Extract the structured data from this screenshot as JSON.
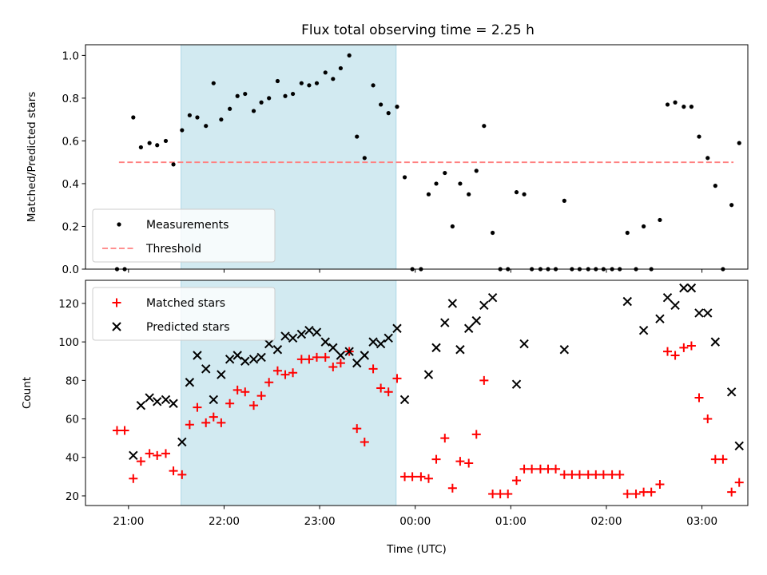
{
  "title": "Flux total observing time = 2.25 h",
  "colors": {
    "shade": "#add8e6",
    "measurement": "#000000",
    "threshold": "#ff8080",
    "matched": "#ff0000",
    "predicted": "#000000"
  },
  "x_ticks": [
    "21:00",
    "22:00",
    "23:00",
    "00:00",
    "01:00",
    "02:00",
    "03:00"
  ],
  "chart_data": [
    {
      "type": "scatter",
      "xlabel": "",
      "ylabel": "Matched/Predicted stars",
      "xlim": [
        20.55,
        27.48
      ],
      "ylim": [
        0,
        1.05
      ],
      "yticks": [
        "0.0",
        "0.2",
        "0.4",
        "0.6",
        "0.8",
        "1.0"
      ],
      "shaded_interval": [
        21.55,
        23.8
      ],
      "legend": {
        "placement": "lower-left",
        "entries": [
          "Measurements",
          "Threshold"
        ]
      },
      "threshold": {
        "name": "Threshold",
        "y": 0.5,
        "x_range": [
          20.9,
          27.33
        ]
      },
      "series": [
        {
          "name": "Measurements",
          "marker": "point",
          "points": [
            [
              20.88,
              0.0
            ],
            [
              20.96,
              0.0
            ],
            [
              21.05,
              0.71
            ],
            [
              21.13,
              0.57
            ],
            [
              21.22,
              0.59
            ],
            [
              21.3,
              0.58
            ],
            [
              21.39,
              0.6
            ],
            [
              21.47,
              0.49
            ],
            [
              21.56,
              0.65
            ],
            [
              21.64,
              0.72
            ],
            [
              21.72,
              0.71
            ],
            [
              21.81,
              0.67
            ],
            [
              21.89,
              0.87
            ],
            [
              21.97,
              0.7
            ],
            [
              22.06,
              0.75
            ],
            [
              22.14,
              0.81
            ],
            [
              22.22,
              0.82
            ],
            [
              22.31,
              0.74
            ],
            [
              22.39,
              0.78
            ],
            [
              22.47,
              0.8
            ],
            [
              22.56,
              0.88
            ],
            [
              22.64,
              0.81
            ],
            [
              22.72,
              0.82
            ],
            [
              22.81,
              0.87
            ],
            [
              22.89,
              0.86
            ],
            [
              22.97,
              0.87
            ],
            [
              23.06,
              0.92
            ],
            [
              23.14,
              0.89
            ],
            [
              23.22,
              0.94
            ],
            [
              23.31,
              1.0
            ],
            [
              23.39,
              0.62
            ],
            [
              23.47,
              0.52
            ],
            [
              23.56,
              0.86
            ],
            [
              23.64,
              0.77
            ],
            [
              23.72,
              0.73
            ],
            [
              23.81,
              0.76
            ],
            [
              23.89,
              0.43
            ],
            [
              23.97,
              0.0
            ],
            [
              24.06,
              0.0
            ],
            [
              24.14,
              0.35
            ],
            [
              24.22,
              0.4
            ],
            [
              24.31,
              0.45
            ],
            [
              24.39,
              0.2
            ],
            [
              24.47,
              0.4
            ],
            [
              24.56,
              0.35
            ],
            [
              24.64,
              0.46
            ],
            [
              24.72,
              0.67
            ],
            [
              24.81,
              0.17
            ],
            [
              24.89,
              0.0
            ],
            [
              24.97,
              0.0
            ],
            [
              25.06,
              0.36
            ],
            [
              25.14,
              0.35
            ],
            [
              25.22,
              0.0
            ],
            [
              25.31,
              0.0
            ],
            [
              25.39,
              0.0
            ],
            [
              25.47,
              0.0
            ],
            [
              25.56,
              0.32
            ],
            [
              25.64,
              0.0
            ],
            [
              25.72,
              0.0
            ],
            [
              25.81,
              0.0
            ],
            [
              25.89,
              0.0
            ],
            [
              25.97,
              0.0
            ],
            [
              26.06,
              0.0
            ],
            [
              26.14,
              0.0
            ],
            [
              26.22,
              0.17
            ],
            [
              26.31,
              0.0
            ],
            [
              26.39,
              0.2
            ],
            [
              26.47,
              0.0
            ],
            [
              26.56,
              0.23
            ],
            [
              26.64,
              0.77
            ],
            [
              26.72,
              0.78
            ],
            [
              26.81,
              0.76
            ],
            [
              26.89,
              0.76
            ],
            [
              26.97,
              0.62
            ],
            [
              27.06,
              0.52
            ],
            [
              27.14,
              0.39
            ],
            [
              27.22,
              0.0
            ],
            [
              27.31,
              0.3
            ],
            [
              27.39,
              0.59
            ]
          ]
        }
      ]
    },
    {
      "type": "scatter",
      "xlabel": "Time (UTC)",
      "ylabel": "Count",
      "xlim": [
        20.55,
        27.48
      ],
      "ylim": [
        15,
        132
      ],
      "yticks": [
        "20",
        "40",
        "60",
        "80",
        "100",
        "120"
      ],
      "shaded_interval": [
        21.55,
        23.8
      ],
      "legend": {
        "placement": "upper-left",
        "entries": [
          "Matched stars",
          "Predicted stars"
        ]
      },
      "series": [
        {
          "name": "Matched stars",
          "marker": "plus",
          "points": [
            [
              20.88,
              54
            ],
            [
              20.96,
              54
            ],
            [
              21.05,
              29
            ],
            [
              21.13,
              38
            ],
            [
              21.22,
              42
            ],
            [
              21.3,
              41
            ],
            [
              21.39,
              42
            ],
            [
              21.47,
              33
            ],
            [
              21.56,
              31
            ],
            [
              21.64,
              57
            ],
            [
              21.72,
              66
            ],
            [
              21.81,
              58
            ],
            [
              21.89,
              61
            ],
            [
              21.97,
              58
            ],
            [
              22.06,
              68
            ],
            [
              22.14,
              75
            ],
            [
              22.22,
              74
            ],
            [
              22.31,
              67
            ],
            [
              22.39,
              72
            ],
            [
              22.47,
              79
            ],
            [
              22.56,
              85
            ],
            [
              22.64,
              83
            ],
            [
              22.72,
              84
            ],
            [
              22.81,
              91
            ],
            [
              22.89,
              91
            ],
            [
              22.97,
              92
            ],
            [
              23.06,
              92
            ],
            [
              23.14,
              87
            ],
            [
              23.22,
              89
            ],
            [
              23.31,
              95
            ],
            [
              23.39,
              55
            ],
            [
              23.47,
              48
            ],
            [
              23.56,
              86
            ],
            [
              23.64,
              76
            ],
            [
              23.72,
              74
            ],
            [
              23.81,
              81
            ],
            [
              23.89,
              30
            ],
            [
              23.97,
              30
            ],
            [
              24.06,
              30
            ],
            [
              24.14,
              29
            ],
            [
              24.22,
              39
            ],
            [
              24.31,
              50
            ],
            [
              24.39,
              24
            ],
            [
              24.47,
              38
            ],
            [
              24.56,
              37
            ],
            [
              24.64,
              52
            ],
            [
              24.72,
              80
            ],
            [
              24.81,
              21
            ],
            [
              24.89,
              21
            ],
            [
              24.97,
              21
            ],
            [
              25.06,
              28
            ],
            [
              25.14,
              34
            ],
            [
              25.22,
              34
            ],
            [
              25.31,
              34
            ],
            [
              25.39,
              34
            ],
            [
              25.47,
              34
            ],
            [
              25.56,
              31
            ],
            [
              25.64,
              31
            ],
            [
              25.72,
              31
            ],
            [
              25.81,
              31
            ],
            [
              25.89,
              31
            ],
            [
              25.97,
              31
            ],
            [
              26.06,
              31
            ],
            [
              26.14,
              31
            ],
            [
              26.22,
              21
            ],
            [
              26.31,
              21
            ],
            [
              26.39,
              22
            ],
            [
              26.47,
              22
            ],
            [
              26.56,
              26
            ],
            [
              26.64,
              95
            ],
            [
              26.72,
              93
            ],
            [
              26.81,
              97
            ],
            [
              26.89,
              98
            ],
            [
              26.97,
              71
            ],
            [
              27.06,
              60
            ],
            [
              27.14,
              39
            ],
            [
              27.22,
              39
            ],
            [
              27.31,
              22
            ],
            [
              27.39,
              27
            ]
          ]
        },
        {
          "name": "Predicted stars",
          "marker": "x",
          "points": [
            [
              21.05,
              41
            ],
            [
              21.13,
              67
            ],
            [
              21.22,
              71
            ],
            [
              21.3,
              69
            ],
            [
              21.39,
              70
            ],
            [
              21.47,
              68
            ],
            [
              21.56,
              48
            ],
            [
              21.64,
              79
            ],
            [
              21.72,
              93
            ],
            [
              21.81,
              86
            ],
            [
              21.89,
              70
            ],
            [
              21.97,
              83
            ],
            [
              22.06,
              91
            ],
            [
              22.14,
              93
            ],
            [
              22.22,
              90
            ],
            [
              22.31,
              91
            ],
            [
              22.39,
              92
            ],
            [
              22.47,
              99
            ],
            [
              22.56,
              96
            ],
            [
              22.64,
              103
            ],
            [
              22.72,
              102
            ],
            [
              22.81,
              104
            ],
            [
              22.89,
              106
            ],
            [
              22.97,
              105
            ],
            [
              23.06,
              100
            ],
            [
              23.14,
              97
            ],
            [
              23.22,
              93
            ],
            [
              23.31,
              95
            ],
            [
              23.39,
              89
            ],
            [
              23.47,
              93
            ],
            [
              23.56,
              100
            ],
            [
              23.64,
              99
            ],
            [
              23.72,
              102
            ],
            [
              23.81,
              107
            ],
            [
              23.89,
              70
            ],
            [
              24.14,
              83
            ],
            [
              24.22,
              97
            ],
            [
              24.31,
              110
            ],
            [
              24.39,
              120
            ],
            [
              24.47,
              96
            ],
            [
              24.56,
              107
            ],
            [
              24.64,
              111
            ],
            [
              24.72,
              119
            ],
            [
              24.81,
              123
            ],
            [
              25.06,
              78
            ],
            [
              25.14,
              99
            ],
            [
              25.56,
              96
            ],
            [
              26.22,
              121
            ],
            [
              26.39,
              106
            ],
            [
              26.56,
              112
            ],
            [
              26.64,
              123
            ],
            [
              26.72,
              119
            ],
            [
              26.81,
              128
            ],
            [
              26.89,
              128
            ],
            [
              26.97,
              115
            ],
            [
              27.06,
              115
            ],
            [
              27.14,
              100
            ],
            [
              27.31,
              74
            ],
            [
              27.39,
              46
            ]
          ]
        }
      ]
    }
  ]
}
